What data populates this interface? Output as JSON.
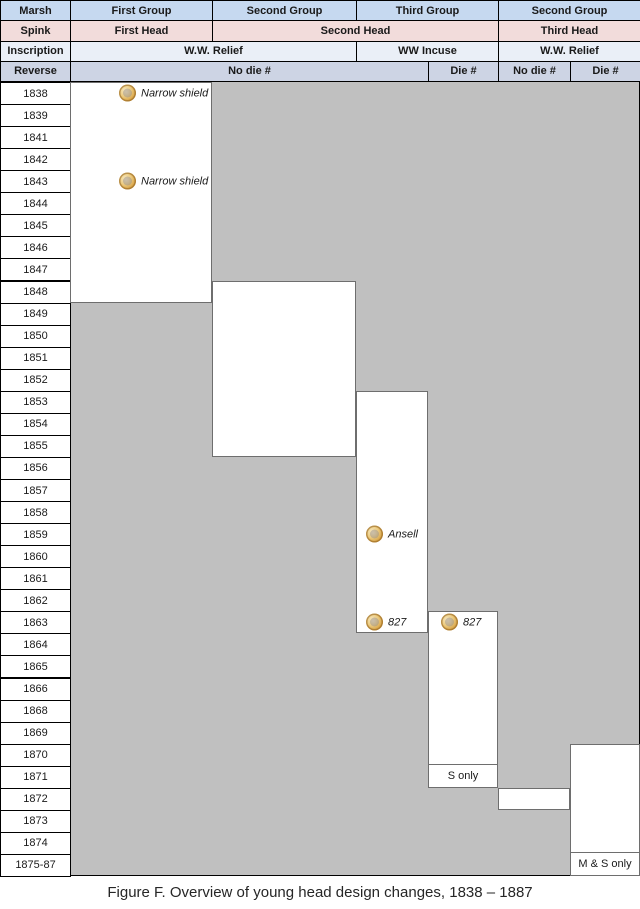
{
  "caption": "Figure F. Overview of young head design changes, 1838 – 1887",
  "palette": {
    "marsh_row_bg": "#c6d9f0",
    "spink_row_bg": "#f2dcdb",
    "inscription_row_bg": "#eaeff7",
    "reverse_row_bg": "#cdd4e4",
    "chart_field_gray": "#c0c0c0",
    "block_border_gray": "#6e6e6e",
    "grid_black": "#000000",
    "coin_gold": "#d7a245"
  },
  "header": {
    "rows": [
      {
        "name": "marsh",
        "cells": [
          "Marsh",
          "First Group",
          "Second Group",
          "Third Group",
          "Second Group"
        ]
      },
      {
        "name": "spink",
        "cells": [
          "Spink",
          "First Head",
          "Second Head",
          "Third Head"
        ]
      },
      {
        "name": "inscription",
        "cells": [
          "Inscription",
          "W.W. Relief",
          "WW Incuse",
          "W.W. Relief"
        ]
      },
      {
        "name": "reverse",
        "cells": [
          "Reverse",
          "No die #",
          "Die #",
          "No die #",
          "Die #"
        ]
      }
    ]
  },
  "years": [
    "1838",
    "1839",
    "1841",
    "1842",
    "1843",
    "1844",
    "1845",
    "1846",
    "1847",
    "1848",
    "1849",
    "1850",
    "1851",
    "1852",
    "1853",
    "1854",
    "1855",
    "1856",
    "1857",
    "1858",
    "1859",
    "1860",
    "1861",
    "1862",
    "1863",
    "1864",
    "1865",
    "1866",
    "1868",
    "1869",
    "1870",
    "1871",
    "1872",
    "1873",
    "1874",
    "1875-87"
  ],
  "blocks": [
    {
      "name": "first-group-no-die",
      "start_year": "1838",
      "end_year": "1848"
    },
    {
      "name": "second-group-no-die",
      "start_year": "1848",
      "end_year": "1855"
    },
    {
      "name": "third-group-no-die",
      "start_year": "1853",
      "end_year": "1863"
    },
    {
      "name": "third-group-die",
      "start_year": "1863",
      "end_year": "1871",
      "footer": "S only"
    },
    {
      "name": "second-group-2-no-die",
      "start_year": "1872",
      "end_year": "1872"
    },
    {
      "name": "second-group-2-die",
      "start_year": "1870",
      "end_year": "1875-87",
      "footer": "M & S only"
    }
  ],
  "annotations": [
    {
      "year": "1838",
      "label": "Narrow shield",
      "icon": "coin-icon"
    },
    {
      "year": "1843",
      "label": "Narrow shield",
      "icon": "coin-icon"
    },
    {
      "year": "1859",
      "label": "Ansell",
      "icon": "coin-icon"
    },
    {
      "year": "1863",
      "label": "827",
      "icon": "coin-icon"
    },
    {
      "year": "1863",
      "label": "827",
      "icon": "coin-icon"
    }
  ],
  "chart_data": {
    "type": "table",
    "title": "Figure F. Overview of young head design changes, 1838 – 1887",
    "years": [
      "1838",
      "1839",
      "1841",
      "1842",
      "1843",
      "1844",
      "1845",
      "1846",
      "1847",
      "1848",
      "1849",
      "1850",
      "1851",
      "1852",
      "1853",
      "1854",
      "1855",
      "1856",
      "1857",
      "1858",
      "1859",
      "1860",
      "1861",
      "1862",
      "1863",
      "1864",
      "1865",
      "1866",
      "1868",
      "1869",
      "1870",
      "1871",
      "1872",
      "1873",
      "1874",
      "1875-87"
    ],
    "ranges": [
      {
        "marsh_group": "First Group",
        "spink_head": "First Head",
        "inscription": "W.W. Relief",
        "reverse": "No die #",
        "from": "1838",
        "to": "1848"
      },
      {
        "marsh_group": "Second Group",
        "spink_head": "Second Head",
        "inscription": "W.W. Relief",
        "reverse": "No die #",
        "from": "1848",
        "to": "1855"
      },
      {
        "marsh_group": "Third Group",
        "spink_head": "Second Head",
        "inscription": "WW Incuse",
        "reverse": "No die #",
        "from": "1853",
        "to": "1863"
      },
      {
        "marsh_group": "Third Group",
        "spink_head": "Second Head",
        "inscription": "WW Incuse",
        "reverse": "Die #",
        "from": "1863",
        "to": "1871",
        "note": "S only (1871)"
      },
      {
        "marsh_group": "Second Group",
        "spink_head": "Third Head",
        "inscription": "W.W. Relief",
        "reverse": "No die #",
        "from": "1872",
        "to": "1872"
      },
      {
        "marsh_group": "Second Group",
        "spink_head": "Third Head",
        "inscription": "W.W. Relief",
        "reverse": "Die #",
        "from": "1870",
        "to": "1875-87",
        "note": "M & S only (1875-87)"
      }
    ],
    "point_annotations": [
      {
        "year": "1838",
        "label": "Narrow shield"
      },
      {
        "year": "1843",
        "label": "Narrow shield"
      },
      {
        "year": "1859",
        "label": "Ansell"
      },
      {
        "year": "1863",
        "label": "827",
        "column": "No die #"
      },
      {
        "year": "1863",
        "label": "827",
        "column": "Die #"
      },
      {
        "year": "1871",
        "label": "S only"
      },
      {
        "year": "1875-87",
        "label": "M & S only"
      }
    ]
  }
}
